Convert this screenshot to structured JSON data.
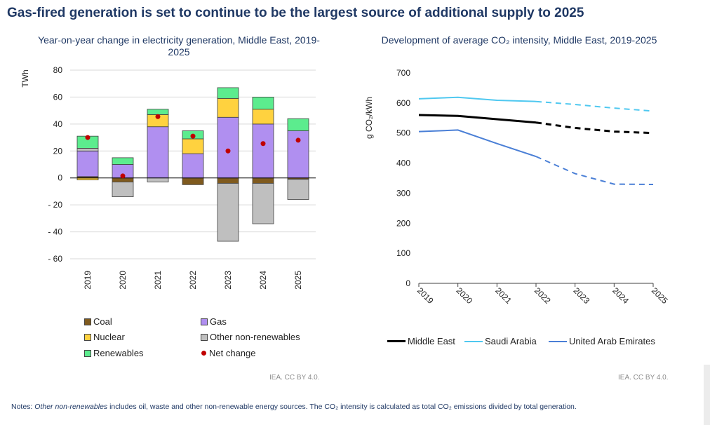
{
  "title": "Gas-fired generation is set to continue to be the largest source of additional supply to 2025",
  "colors": {
    "coal": "#7f5a1e",
    "gas": "#b08ff0",
    "nuclear": "#ffd23f",
    "other_non_renewables": "#bfbfbf",
    "renewables": "#5cec8e",
    "net_change": "#c00000",
    "middle_east": "#000000",
    "saudi_arabia": "#4fc8f0",
    "uae": "#4a7fd6"
  },
  "chart_data": [
    {
      "type": "bar",
      "stacked": true,
      "title": "Year-on-year change in electricity generation, Middle East, 2019-2025",
      "ylabel": "TWh",
      "xlabel": "",
      "categories": [
        "2019",
        "2020",
        "2021",
        "2022",
        "2023",
        "2024",
        "2025"
      ],
      "ylim": [
        -60,
        80
      ],
      "yticks": [
        80,
        60,
        40,
        20,
        0,
        -20,
        -40,
        -60
      ],
      "ytick_labels": [
        "80",
        "60",
        "40",
        "20",
        "0",
        "- 20",
        "- 40",
        "- 60"
      ],
      "series": [
        {
          "name": "Coal",
          "key": "coal",
          "values": [
            1,
            -3,
            0,
            -5,
            -4,
            -4,
            -1
          ]
        },
        {
          "name": "Gas",
          "key": "gas",
          "values": [
            19,
            10,
            38,
            18,
            45,
            40,
            35
          ]
        },
        {
          "name": "Nuclear",
          "key": "nuclear",
          "values": [
            -1.5,
            0,
            9,
            11,
            14,
            11,
            0
          ]
        },
        {
          "name": "Other non-renewables",
          "key": "other_non_renewables",
          "values": [
            2,
            -11,
            -3,
            0,
            -43,
            -30,
            -15
          ]
        },
        {
          "name": "Renewables",
          "key": "renewables",
          "values": [
            9,
            5,
            4,
            6,
            8,
            9,
            9
          ]
        }
      ],
      "net_change": {
        "name": "Net change",
        "values": [
          30,
          1.5,
          45.5,
          31,
          20,
          25.5,
          28
        ]
      },
      "legend": [
        "Coal",
        "Gas",
        "Nuclear",
        "Other non-renewables",
        "Renewables",
        "Net change"
      ],
      "legend_position": "bottom"
    },
    {
      "type": "line",
      "title": "Development of average CO₂ intensity, Middle East, 2019-2025",
      "ylabel": "g CO₂/kWh",
      "xlabel": "",
      "x": [
        "2019",
        "2020",
        "2021",
        "2022",
        "2023",
        "2024",
        "2025"
      ],
      "ylim": [
        0,
        700
      ],
      "yticks": [
        0,
        100,
        200,
        300,
        400,
        500,
        600,
        700
      ],
      "ytick_labels": [
        "0",
        "100",
        "200",
        "300",
        "400",
        "500",
        "600",
        "700"
      ],
      "forecast_from": "2022",
      "series": [
        {
          "name": "Middle East",
          "key": "middle_east",
          "values": [
            560,
            557,
            546,
            535,
            517,
            505,
            500
          ]
        },
        {
          "name": "Saudi Arabia",
          "key": "saudi_arabia",
          "values": [
            614,
            619,
            609,
            605,
            595,
            583,
            573
          ]
        },
        {
          "name": "United Arab Emirates",
          "key": "uae",
          "values": [
            505,
            510,
            465,
            422,
            365,
            330,
            329
          ]
        }
      ],
      "legend_position": "bottom"
    }
  ],
  "legend_left": {
    "coal": "Coal",
    "gas": "Gas",
    "nuclear": "Nuclear",
    "other": "Other non-renewables",
    "renewables": "Renewables",
    "net": "Net change"
  },
  "legend_right": {
    "middle_east": "Middle East",
    "saudi_arabia": "Saudi Arabia",
    "uae": "United Arab Emirates"
  },
  "credit_left": "IEA. CC BY 4.0.",
  "credit_right": "IEA. CC BY 4.0.",
  "notes": {
    "prefix": "Notes: ",
    "italic": "Other non-renewables",
    "rest": " includes oil, waste and other non-renewable energy sources. The CO₂ intensity is calculated as total CO₂ emissions divided by total generation."
  }
}
